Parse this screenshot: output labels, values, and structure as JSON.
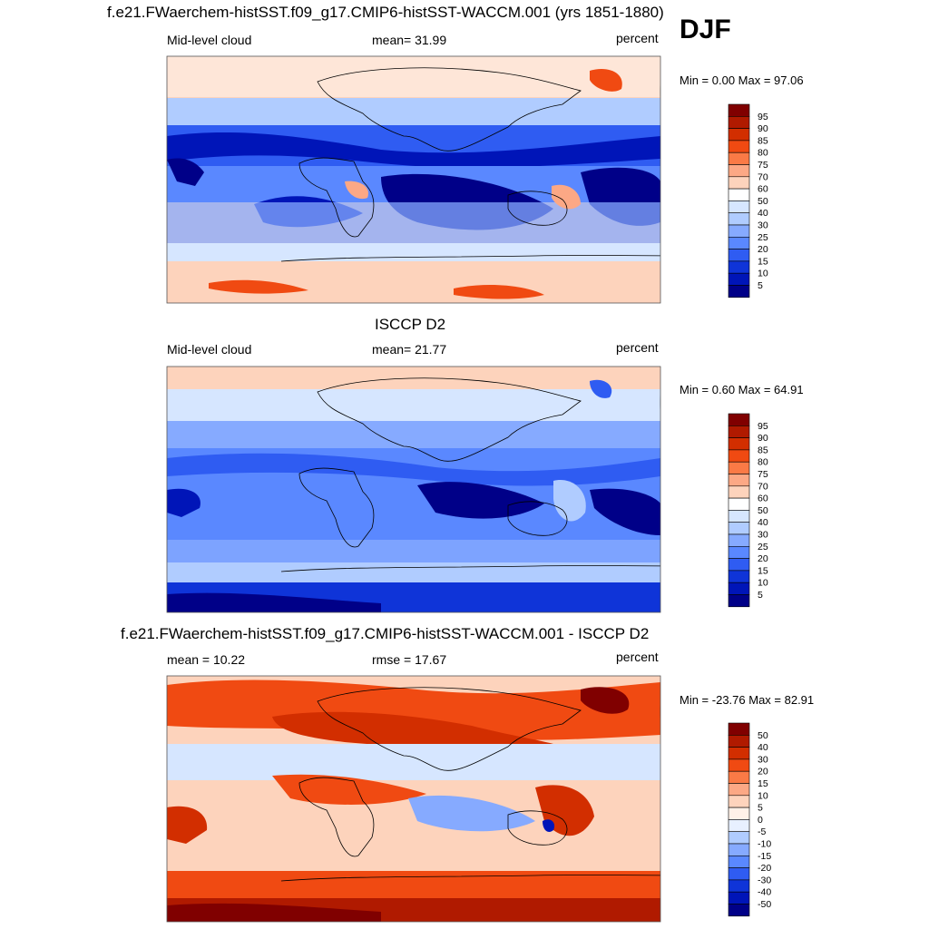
{
  "season": "DJF",
  "panels": [
    {
      "title": "f.e21.FWaerchem-histSST.f09_g17.CMIP6-histSST-WACCM.001 (yrs 1851-1880)",
      "left_label": "Mid-level cloud",
      "center_label": "mean=  31.99",
      "right_label": "percent",
      "minmax": "Min =   0.00 Max =  97.06",
      "palette": "abs",
      "colorbar_labels": [
        "95",
        "90",
        "85",
        "80",
        "75",
        "70",
        "60",
        "50",
        "40",
        "30",
        "25",
        "20",
        "15",
        "10",
        "5"
      ]
    },
    {
      "title": "ISCCP D2",
      "left_label": "Mid-level cloud",
      "center_label": "mean=  21.77",
      "right_label": "percent",
      "minmax": "Min =   0.60 Max =  64.91",
      "palette": "abs",
      "colorbar_labels": [
        "95",
        "90",
        "85",
        "80",
        "75",
        "70",
        "60",
        "50",
        "40",
        "30",
        "25",
        "20",
        "15",
        "10",
        "5"
      ]
    },
    {
      "title": "f.e21.FWaerchem-histSST.f09_g17.CMIP6-histSST-WACCM.001 - ISCCP D2",
      "left_label": "mean =  10.22",
      "center_label": "rmse =  17.67",
      "right_label": "percent",
      "minmax": "Min = -23.76 Max =  82.91",
      "palette": "diff",
      "colorbar_labels": [
        "50",
        "40",
        "30",
        "20",
        "15",
        "10",
        "5",
        "0",
        "-5",
        "-10",
        "-15",
        "-20",
        "-30",
        "-40",
        "-50"
      ]
    }
  ],
  "colors": {
    "abs": [
      "#800000",
      "#b01a00",
      "#d22e00",
      "#f04a12",
      "#fa7a46",
      "#fca885",
      "#fdd3bc",
      "#ffffff",
      "#d6e6ff",
      "#b0ccff",
      "#86aaff",
      "#5a88ff",
      "#2f5cf2",
      "#0f34d8",
      "#0015b8",
      "#000088"
    ],
    "diff": [
      "#800000",
      "#b01a00",
      "#d22e00",
      "#f04a12",
      "#fa7a46",
      "#fca885",
      "#fdd3bc",
      "#fff1e8",
      "#e8f0ff",
      "#b0ccff",
      "#86aaff",
      "#5a88ff",
      "#2f5cf2",
      "#0f34d8",
      "#0015b8",
      "#000088"
    ]
  }
}
